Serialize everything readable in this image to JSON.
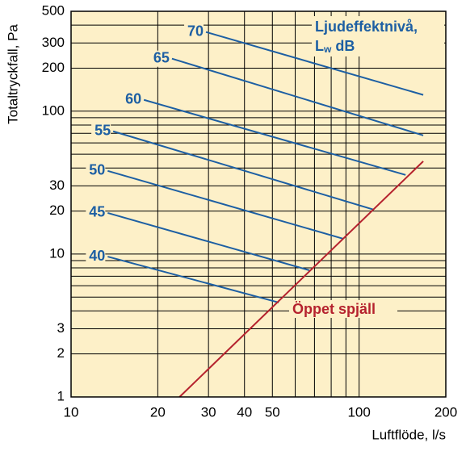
{
  "chart_data": {
    "type": "line",
    "log_x": true,
    "log_y": true,
    "grid": true,
    "xlabel": "Luftflöde, l/s",
    "ylabel": "Totaltryckfall, Pa",
    "legend_title": {
      "main": "Ljudeffektnivå,",
      "symbol": "L",
      "subscript": "w",
      "unit": "dB"
    },
    "annotation": "Öppet spjäll",
    "xlim": [
      10,
      200
    ],
    "ylim": [
      1,
      500
    ],
    "xticks": [
      10,
      20,
      30,
      40,
      50,
      100,
      200
    ],
    "xminor": [
      60,
      70,
      80,
      90
    ],
    "yticks": [
      1,
      2,
      3,
      10,
      20,
      30,
      100,
      200,
      300,
      500
    ],
    "yminor": [
      4,
      5,
      6,
      7,
      8,
      9,
      40,
      50,
      60,
      70,
      80,
      90,
      400
    ],
    "background": "#fdf0c8",
    "series": [
      {
        "name": "70",
        "color": "#1d5fa3",
        "x": [
          29.4,
          167
        ],
        "values": [
          358,
          130
        ]
      },
      {
        "name": "65",
        "color": "#1d5fa3",
        "x": [
          22.4,
          167
        ],
        "values": [
          233,
          67.7
        ]
      },
      {
        "name": "60",
        "color": "#1d5fa3",
        "x": [
          17.9,
          145
        ],
        "values": [
          120,
          35.8
        ]
      },
      {
        "name": "55",
        "color": "#1d5fa3",
        "x": [
          14.0,
          112
        ],
        "values": [
          72.3,
          20.5
        ]
      },
      {
        "name": "50",
        "color": "#1d5fa3",
        "x": [
          13.4,
          88.1
        ],
        "values": [
          38.2,
          12.8
        ]
      },
      {
        "name": "45",
        "color": "#1d5fa3",
        "x": [
          13.4,
          67.2
        ],
        "values": [
          19.4,
          7.7
        ]
      },
      {
        "name": "40",
        "color": "#1d5fa3",
        "x": [
          13.4,
          52.6
        ],
        "values": [
          9.6,
          4.58
        ]
      },
      {
        "name": "Öppet spjäll",
        "color": "#b5222e",
        "x": [
          23.8,
          167
        ],
        "values": [
          1,
          44.6
        ]
      }
    ]
  }
}
